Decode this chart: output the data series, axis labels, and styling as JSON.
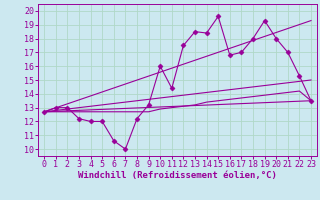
{
  "background_color": "#cce8f0",
  "grid_color": "#b0d8c8",
  "line_color": "#990099",
  "xlabel": "Windchill (Refroidissement éolien,°C)",
  "xlabel_fontsize": 6.5,
  "tick_fontsize": 6,
  "xlim": [
    -0.5,
    23.5
  ],
  "ylim": [
    9.5,
    20.5
  ],
  "yticks": [
    10,
    11,
    12,
    13,
    14,
    15,
    16,
    17,
    18,
    19,
    20
  ],
  "xticks": [
    0,
    1,
    2,
    3,
    4,
    5,
    6,
    7,
    8,
    9,
    10,
    11,
    12,
    13,
    14,
    15,
    16,
    17,
    18,
    19,
    20,
    21,
    22,
    23
  ],
  "series1_x": [
    0,
    1,
    2,
    3,
    4,
    5,
    6,
    7,
    8,
    9,
    10,
    11,
    12,
    13,
    14,
    15,
    16,
    17,
    18,
    19,
    20,
    21,
    22,
    23
  ],
  "series1_y": [
    12.7,
    13.0,
    13.0,
    12.2,
    12.0,
    12.0,
    10.6,
    10.0,
    12.2,
    13.2,
    16.0,
    14.4,
    17.5,
    18.5,
    18.4,
    19.6,
    16.8,
    17.0,
    18.0,
    19.3,
    18.0,
    17.0,
    15.3,
    13.5
  ],
  "series2_x": [
    0,
    1,
    2,
    3,
    4,
    5,
    6,
    7,
    8,
    9,
    10,
    11,
    12,
    13,
    14,
    15,
    16,
    17,
    18,
    19,
    20,
    21,
    22,
    23
  ],
  "series2_y": [
    12.7,
    12.7,
    12.7,
    12.7,
    12.7,
    12.7,
    12.7,
    12.7,
    12.7,
    12.7,
    12.9,
    13.0,
    13.1,
    13.2,
    13.4,
    13.5,
    13.6,
    13.7,
    13.8,
    13.9,
    14.0,
    14.1,
    14.2,
    13.5
  ],
  "line2_x": [
    0,
    23
  ],
  "line2_y": [
    12.7,
    13.5
  ],
  "line3_x": [
    0,
    23
  ],
  "line3_y": [
    12.7,
    15.0
  ],
  "line4_x": [
    0,
    23
  ],
  "line4_y": [
    12.7,
    19.3
  ]
}
